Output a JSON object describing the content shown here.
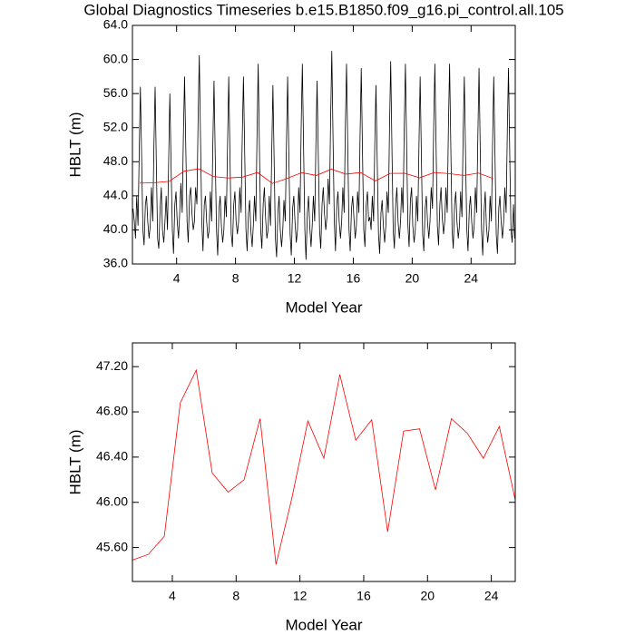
{
  "chart_data": [
    {
      "type": "line",
      "title": "Global Diagnostics Timeseries b.e15.B1850.f09_g16.pi_control.all.105",
      "xlabel": "Model Year",
      "ylabel": "HBLT (m)",
      "xlim": [
        1,
        27
      ],
      "xticks": [
        4,
        8,
        12,
        16,
        20,
        24
      ],
      "ylim": [
        36,
        64
      ],
      "yticks": [
        {
          "value": 36,
          "label": "36.0"
        },
        {
          "value": 40,
          "label": "40.0"
        },
        {
          "value": 44,
          "label": "44.0"
        },
        {
          "value": 48,
          "label": "48.0"
        },
        {
          "value": 52,
          "label": "52.0"
        },
        {
          "value": 56,
          "label": "56.0"
        },
        {
          "value": 60,
          "label": "60.0"
        },
        {
          "value": 64,
          "label": "64.0"
        }
      ],
      "series": [
        {
          "color": "#000000",
          "x": [
            1.04,
            1.13,
            1.21,
            1.29,
            1.38,
            1.46,
            1.54,
            1.63,
            1.71,
            1.79,
            1.88,
            1.96,
            2.04,
            2.13,
            2.21,
            2.29,
            2.38,
            2.46,
            2.54,
            2.63,
            2.71,
            2.79,
            2.88,
            2.96,
            3.04,
            3.13,
            3.21,
            3.29,
            3.38,
            3.46,
            3.54,
            3.63,
            3.71,
            3.79,
            3.88,
            3.96,
            4.04,
            4.13,
            4.21,
            4.29,
            4.38,
            4.46,
            4.54,
            4.63,
            4.71,
            4.79,
            4.88,
            4.96,
            5.04,
            5.13,
            5.21,
            5.29,
            5.38,
            5.46,
            5.54,
            5.63,
            5.71,
            5.79,
            5.88,
            5.96,
            6.04,
            6.13,
            6.21,
            6.29,
            6.38,
            6.46,
            6.54,
            6.63,
            6.71,
            6.79,
            6.88,
            6.96,
            7.04,
            7.13,
            7.21,
            7.29,
            7.38,
            7.46,
            7.54,
            7.63,
            7.71,
            7.79,
            7.88,
            7.96,
            8.04,
            8.13,
            8.21,
            8.29,
            8.38,
            8.46,
            8.54,
            8.63,
            8.71,
            8.79,
            8.88,
            8.96,
            9.04,
            9.13,
            9.21,
            9.29,
            9.38,
            9.46,
            9.54,
            9.63,
            9.71,
            9.79,
            9.88,
            9.96,
            10.04,
            10.13,
            10.21,
            10.29,
            10.38,
            10.46,
            10.54,
            10.63,
            10.71,
            10.79,
            10.88,
            10.96,
            11.04,
            11.13,
            11.21,
            11.29,
            11.38,
            11.46,
            11.54,
            11.63,
            11.71,
            11.79,
            11.88,
            11.96,
            12.04,
            12.13,
            12.21,
            12.29,
            12.38,
            12.46,
            12.54,
            12.63,
            12.71,
            12.79,
            12.88,
            12.96,
            13.04,
            13.13,
            13.21,
            13.29,
            13.38,
            13.46,
            13.54,
            13.63,
            13.71,
            13.79,
            13.88,
            13.96,
            14.04,
            14.13,
            14.21,
            14.29,
            14.38,
            14.46,
            14.54,
            14.63,
            14.71,
            14.79,
            14.88,
            14.96,
            15.04,
            15.13,
            15.21,
            15.29,
            15.38,
            15.46,
            15.54,
            15.63,
            15.71,
            15.79,
            15.88,
            15.96,
            16.04,
            16.13,
            16.21,
            16.29,
            16.38,
            16.46,
            16.54,
            16.63,
            16.71,
            16.79,
            16.88,
            16.96,
            17.04,
            17.13,
            17.21,
            17.29,
            17.38,
            17.46,
            17.54,
            17.63,
            17.71,
            17.79,
            17.88,
            17.96,
            18.04,
            18.13,
            18.21,
            18.29,
            18.38,
            18.46,
            18.54,
            18.63,
            18.71,
            18.79,
            18.88,
            18.96,
            19.04,
            19.13,
            19.21,
            19.29,
            19.38,
            19.46,
            19.54,
            19.63,
            19.71,
            19.79,
            19.88,
            19.96,
            20.04,
            20.13,
            20.21,
            20.29,
            20.38,
            20.46,
            20.54,
            20.63,
            20.71,
            20.79,
            20.88,
            20.96,
            21.04,
            21.13,
            21.21,
            21.29,
            21.38,
            21.46,
            21.54,
            21.63,
            21.71,
            21.79,
            21.88,
            21.96,
            22.04,
            22.13,
            22.21,
            22.29,
            22.38,
            22.46,
            22.54,
            22.63,
            22.71,
            22.79,
            22.88,
            22.96,
            23.04,
            23.13,
            23.21,
            23.29,
            23.38,
            23.46,
            23.54,
            23.63,
            23.71,
            23.79,
            23.88,
            23.96,
            24.04,
            24.13,
            24.21,
            24.29,
            24.38,
            24.46,
            24.54,
            24.63,
            24.71,
            24.79,
            24.88,
            24.96,
            25.04,
            25.13,
            25.21,
            25.29,
            25.38,
            25.46,
            25.54,
            25.63,
            25.71,
            25.79,
            25.88,
            25.96,
            26.04,
            26.13,
            26.21,
            26.29,
            26.38,
            26.46,
            26.54,
            26.63,
            26.71,
            26.79,
            26.88,
            26.96
          ],
          "values": [
            42.5,
            41,
            39,
            44,
            40.5,
            49,
            56.8,
            48,
            40,
            38.2,
            43,
            44,
            41,
            39,
            40.5,
            45,
            41,
            50,
            56.8,
            47,
            39,
            37.8,
            42.5,
            45,
            40,
            38.5,
            41,
            44,
            40,
            48,
            56,
            47,
            40,
            37.2,
            43,
            44.5,
            41,
            39,
            42,
            45.5,
            42,
            51,
            58,
            49,
            41,
            38.5,
            44,
            45,
            42,
            40,
            41,
            45,
            43,
            53,
            60.5,
            50,
            41,
            37.5,
            43,
            44,
            41,
            39,
            40,
            44.5,
            41,
            50,
            57.5,
            48,
            40,
            37,
            42.5,
            44,
            40.5,
            38.5,
            40,
            44,
            41.5,
            50,
            58,
            48,
            39.5,
            38,
            43,
            44.5,
            41,
            39.5,
            41,
            45,
            42,
            51,
            58,
            48.5,
            40,
            37.5,
            42,
            43.5,
            40,
            38,
            40.5,
            44,
            41,
            51,
            59.5,
            49,
            40,
            37.8,
            43,
            45,
            41.5,
            39,
            40,
            44,
            40.5,
            49,
            57,
            47.5,
            39,
            36.8,
            42,
            44,
            40,
            38,
            40,
            43.5,
            41,
            50,
            58,
            48,
            39.5,
            37,
            42.5,
            44,
            41,
            38.5,
            40,
            45,
            42,
            52,
            59.5,
            49,
            40,
            36.5,
            42,
            44,
            40.5,
            38,
            40.5,
            44,
            41,
            50,
            57.5,
            48,
            40,
            37.8,
            43,
            45,
            42,
            40,
            41.5,
            46,
            43,
            53,
            61,
            50,
            41,
            37.5,
            43,
            44.5,
            41,
            39,
            41,
            45,
            42,
            52,
            59.5,
            49,
            40,
            37.5,
            42.5,
            44,
            41.5,
            39,
            40.5,
            44.5,
            42,
            51,
            59,
            48.5,
            40,
            38,
            43,
            44.5,
            41,
            41.5,
            40,
            44,
            41,
            50,
            57,
            47.5,
            39.5,
            37.2,
            42,
            43.5,
            40.5,
            38.5,
            40.5,
            44.5,
            42,
            52,
            59.8,
            49,
            40,
            37.8,
            43,
            45,
            41,
            39,
            41,
            45,
            42,
            52,
            59.5,
            49,
            40.5,
            38,
            43.5,
            45,
            40.5,
            38.5,
            40,
            44,
            41,
            50,
            58,
            48,
            39.5,
            37.5,
            42.5,
            44,
            41,
            39,
            41,
            45,
            42.5,
            52,
            59.5,
            49,
            40.5,
            38.2,
            43,
            45,
            41.5,
            39.5,
            41,
            45,
            42,
            52,
            59.5,
            49,
            40,
            37.8,
            43,
            44.5,
            41,
            39,
            40.5,
            44.5,
            41.5,
            51,
            58,
            48,
            40,
            37.5,
            42.5,
            44,
            41,
            39,
            40.5,
            45,
            42,
            51,
            59,
            48.5,
            40,
            37,
            42,
            44.5,
            40.5,
            38.5,
            40,
            44,
            41,
            50,
            58,
            48,
            39.5,
            37.2,
            42.5,
            44,
            41,
            39,
            41,
            45,
            42,
            51.5,
            59,
            48.5,
            40,
            38.5,
            43,
            39
          ]
        },
        {
          "color": "#ff0000",
          "x": [
            1.5,
            2.5,
            3.5,
            4.5,
            5.5,
            6.5,
            7.5,
            8.5,
            9.5,
            10.5,
            11.5,
            12.5,
            13.5,
            14.5,
            15.5,
            16.5,
            17.5,
            18.5,
            19.5,
            20.5,
            21.5,
            22.5,
            23.5,
            24.5,
            25.5
          ],
          "values": [
            45.49,
            45.54,
            45.7,
            46.88,
            47.17,
            46.26,
            46.09,
            46.2,
            46.74,
            45.45,
            46.04,
            46.72,
            46.39,
            47.13,
            46.55,
            46.73,
            45.74,
            46.63,
            46.65,
            46.11,
            46.74,
            46.61,
            46.39,
            46.67,
            46.02
          ]
        }
      ]
    },
    {
      "type": "line",
      "xlabel": "Model Year",
      "ylabel": "HBLT (m)",
      "xlim": [
        1.5,
        25.5
      ],
      "xticks": [
        4,
        8,
        12,
        16,
        20,
        24
      ],
      "ylim": [
        45.3,
        47.41
      ],
      "yticks": [
        {
          "value": 45.6,
          "label": "45.60"
        },
        {
          "value": 46.0,
          "label": "46.00"
        },
        {
          "value": 46.4,
          "label": "46.40"
        },
        {
          "value": 46.8,
          "label": "46.80"
        },
        {
          "value": 47.2,
          "label": "47.20"
        }
      ],
      "series": [
        {
          "color": "#ff0000",
          "x": [
            1.5,
            2.5,
            3.5,
            4.5,
            5.5,
            6.5,
            7.5,
            8.5,
            9.5,
            10.5,
            11.5,
            12.5,
            13.5,
            14.5,
            15.5,
            16.5,
            17.5,
            18.5,
            19.5,
            20.5,
            21.5,
            22.5,
            23.5,
            24.5,
            25.5
          ],
          "values": [
            45.49,
            45.54,
            45.7,
            46.88,
            47.17,
            46.26,
            46.09,
            46.2,
            46.74,
            45.45,
            46.04,
            46.72,
            46.39,
            47.13,
            46.55,
            46.73,
            45.74,
            46.63,
            46.65,
            46.11,
            46.74,
            46.61,
            46.39,
            46.67,
            46.02
          ]
        }
      ]
    }
  ]
}
